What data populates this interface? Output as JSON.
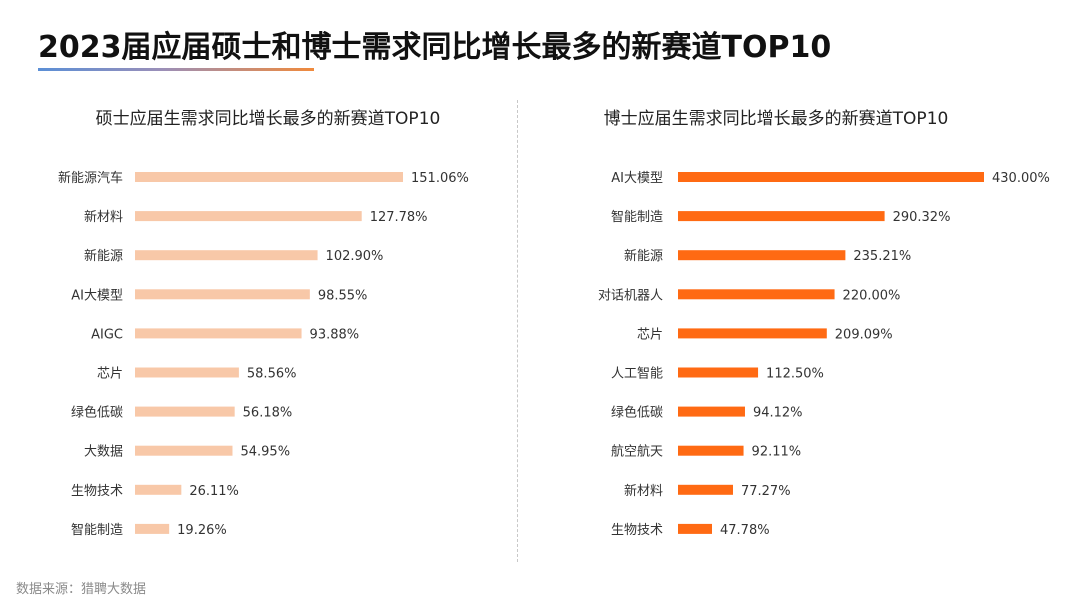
{
  "header": {
    "title": "2023届应届硕士和博士需求同比增长最多的新赛道TOP10"
  },
  "footer": {
    "source": "数据来源：猎聘大数据"
  },
  "colors": {
    "left_bar": "#f8c8a8",
    "right_bar": "#ff6a13"
  },
  "chart_data": [
    {
      "type": "bar",
      "orientation": "horizontal",
      "title": "硕士应届生需求同比增长最多的新赛道TOP10",
      "categories": [
        "新能源汽车",
        "新材料",
        "新能源",
        "AI大模型",
        "AIGC",
        "芯片",
        "绿色低碳",
        "大数据",
        "生物技术",
        "智能制造"
      ],
      "values": [
        151.06,
        127.78,
        102.9,
        98.55,
        93.88,
        58.56,
        56.18,
        54.95,
        26.11,
        19.26
      ],
      "value_labels": [
        "151.06%",
        "127.78%",
        "102.90%",
        "98.55%",
        "93.88%",
        "58.56%",
        "56.18%",
        "54.95%",
        "26.11%",
        "19.26%"
      ],
      "unit": "%",
      "grid": false
    },
    {
      "type": "bar",
      "orientation": "horizontal",
      "title": "博士应届生需求同比增长最多的新赛道TOP10",
      "categories": [
        "AI大模型",
        "智能制造",
        "新能源",
        "对话机器人",
        "芯片",
        "人工智能",
        "绿色低碳",
        "航空航天",
        "新材料",
        "生物技术"
      ],
      "values": [
        430.0,
        290.32,
        235.21,
        220.0,
        209.09,
        112.5,
        94.12,
        92.11,
        77.27,
        47.78
      ],
      "value_labels": [
        "430.00%",
        "290.32%",
        "235.21%",
        "220.00%",
        "209.09%",
        "112.50%",
        "94.12%",
        "92.11%",
        "77.27%",
        "47.78%"
      ],
      "unit": "%",
      "grid": false
    }
  ]
}
